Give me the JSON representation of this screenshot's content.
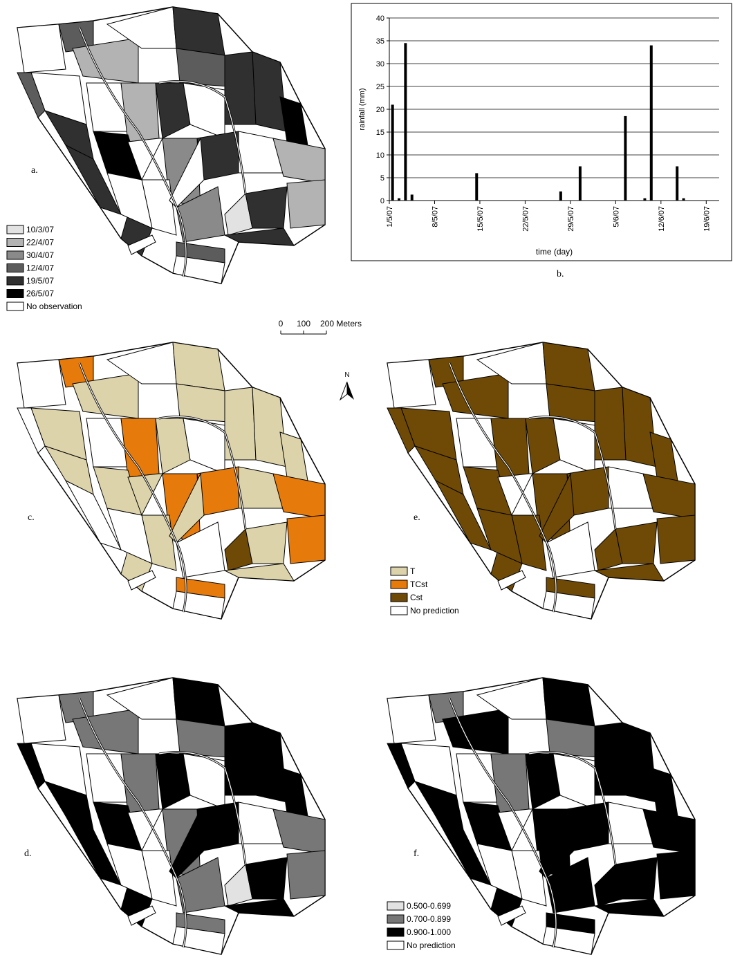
{
  "panels": {
    "a": "a.",
    "b": "b.",
    "c": "c.",
    "d": "d.",
    "e": "e.",
    "f": "f."
  },
  "legend_observation": [
    {
      "label": "10/3/07",
      "color": "#e2e2e2"
    },
    {
      "label": "22/4/07",
      "color": "#b3b3b3"
    },
    {
      "label": "30/4/07",
      "color": "#8a8a8a"
    },
    {
      "label": "12/4/07",
      "color": "#5c5c5c"
    },
    {
      "label": "19/5/07",
      "color": "#303030"
    },
    {
      "label": "26/5/07",
      "color": "#000000"
    },
    {
      "label": "No observation",
      "color": "#ffffff"
    }
  ],
  "legend_crop": [
    {
      "label": "T",
      "color": "#ddd3ab"
    },
    {
      "label": "TCst",
      "color": "#e67a0b"
    },
    {
      "label": "Cst",
      "color": "#6f4a06"
    },
    {
      "label": "No prediction",
      "color": "#ffffff"
    }
  ],
  "legend_probability": [
    {
      "label": "0.500-0.699",
      "color": "#e2e2e2"
    },
    {
      "label": "0.700-0.899",
      "color": "#777777"
    },
    {
      "label": "0.900-1.000",
      "color": "#000000"
    },
    {
      "label": "No prediction",
      "color": "#ffffff"
    }
  ],
  "scale_bar": {
    "labels": [
      "0",
      "100",
      "200 Meters"
    ]
  },
  "north": "N",
  "chart_data": {
    "type": "bar",
    "xlabel": "time (day)",
    "ylabel": "rainfall (mm)",
    "color": "#000000",
    "grid": true,
    "x": [
      "2007-05-01",
      "2007-05-02",
      "2007-05-03",
      "2007-05-04",
      "2007-05-14",
      "2007-05-27",
      "2007-05-30",
      "2007-06-06",
      "2007-06-09",
      "2007-06-10",
      "2007-06-14",
      "2007-06-15"
    ],
    "values": [
      21,
      0.5,
      34.5,
      1.3,
      6,
      2,
      7.5,
      18.5,
      0.5,
      34,
      7.5,
      0.5
    ],
    "xlim": [
      "2007-05-01",
      "2007-06-21"
    ],
    "xticks": [
      {
        "value": "2007-05-01",
        "label": "1/5/07"
      },
      {
        "value": "2007-05-08",
        "label": "8/5/07"
      },
      {
        "value": "2007-05-15",
        "label": "15/5/07"
      },
      {
        "value": "2007-05-22",
        "label": "22/5/07"
      },
      {
        "value": "2007-05-29",
        "label": "29/5/07"
      },
      {
        "value": "2007-06-05",
        "label": "5/6/07"
      },
      {
        "value": "2007-06-12",
        "label": "12/6/07"
      },
      {
        "value": "2007-06-19",
        "label": "19/6/07"
      }
    ],
    "ylim": [
      0,
      40
    ],
    "yticks": [
      0,
      5,
      10,
      15,
      20,
      25,
      30,
      35,
      40
    ]
  }
}
